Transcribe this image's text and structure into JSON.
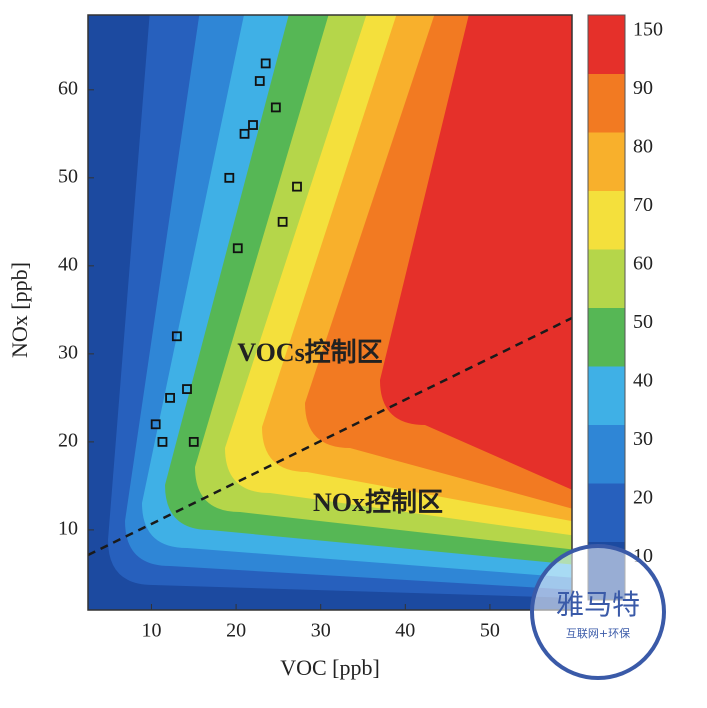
{
  "chart_data": {
    "type": "contour",
    "x_label": "VOC [ppb]",
    "y_label": "NOx [ppb]",
    "xlim": [
      2.5,
      59.7
    ],
    "ylim": [
      0.9,
      68.5
    ],
    "xticks": [
      10,
      20,
      30,
      40,
      50
    ],
    "yticks": [
      10,
      20,
      30,
      40,
      50,
      60
    ],
    "colorbar": {
      "ticks": [
        10,
        20,
        30,
        40,
        50,
        60,
        70,
        80,
        90,
        150
      ],
      "colors": [
        "#1c4aa0",
        "#2760bd",
        "#2f86d6",
        "#3fb0e6",
        "#56b755",
        "#b5d64a",
        "#f4e03c",
        "#f8b02c",
        "#f27a22",
        "#e5302a"
      ]
    },
    "scatter": {
      "x": [
        10.5,
        11.3,
        12.2,
        13,
        14.2,
        15,
        19.2,
        20.2,
        21,
        22,
        22.8,
        23.5,
        24.7,
        25.5,
        27.2
      ],
      "y": [
        22,
        20,
        25,
        32,
        26,
        20,
        50,
        42,
        55,
        56,
        61,
        63,
        58,
        45,
        49
      ]
    },
    "annotations": [
      "VOCs控制区",
      "NOx控制区"
    ],
    "watermark": {
      "name": "雅马特",
      "tagline": "互联网+环保"
    }
  }
}
